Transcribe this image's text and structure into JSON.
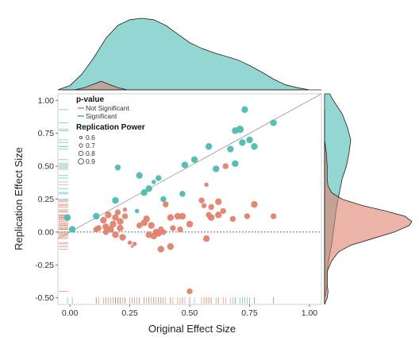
{
  "chart_data": {
    "type": "scatter",
    "title": "",
    "xlabel": "Original Effect Size",
    "ylabel": "Replication Effect Size",
    "xlim": [
      -0.05,
      1.05
    ],
    "ylim": [
      -0.55,
      1.05
    ],
    "xticks": [
      0.0,
      0.25,
      0.5,
      0.75,
      1.0
    ],
    "xtick_labels": [
      "0.00",
      "0.25",
      "0.50",
      "0.75",
      "1.00"
    ],
    "yticks": [
      -0.5,
      -0.25,
      0.0,
      0.25,
      0.5,
      0.75,
      1.0
    ],
    "ytick_labels": [
      "-0.50",
      "-0.25",
      "0.00",
      "0.25",
      "0.50",
      "0.75",
      "1.00"
    ],
    "reference_line": {
      "type": "identity",
      "slope": 1,
      "intercept": 0
    },
    "zero_line": {
      "y": 0,
      "style": "dotted"
    },
    "grid": false,
    "legend": {
      "placement": "top-left",
      "color_title": "p-value",
      "color_entries": [
        {
          "label": "Not Significant",
          "color": "#E0826E"
        },
        {
          "label": "Significant",
          "color": "#4DBBB3"
        }
      ],
      "size_title": "Replication Power",
      "size_entries": [
        {
          "label": "0.6",
          "power": 0.6
        },
        {
          "label": "0.7",
          "power": 0.7
        },
        {
          "label": "0.8",
          "power": 0.8
        },
        {
          "label": "0.9",
          "power": 0.9
        }
      ]
    },
    "colors": {
      "not_significant": "#E0826E",
      "significant": "#4DBBB3"
    },
    "series": [
      {
        "name": "Significant",
        "color": "#4DBBB3",
        "points": [
          {
            "x": -0.01,
            "y": 0.11,
            "power": 0.85
          },
          {
            "x": 0.01,
            "y": 0.02,
            "power": 0.85
          },
          {
            "x": 0.11,
            "y": 0.12,
            "power": 0.85
          },
          {
            "x": 0.19,
            "y": 0.24,
            "power": 0.85
          },
          {
            "x": 0.2,
            "y": 0.49,
            "power": 0.8
          },
          {
            "x": 0.29,
            "y": 0.43,
            "power": 0.85
          },
          {
            "x": 0.28,
            "y": 0.16,
            "power": 0.7
          },
          {
            "x": 0.31,
            "y": 0.3,
            "power": 0.85
          },
          {
            "x": 0.33,
            "y": 0.33,
            "power": 0.85
          },
          {
            "x": 0.37,
            "y": 0.41,
            "power": 0.8
          },
          {
            "x": 0.39,
            "y": 0.25,
            "power": 0.8
          },
          {
            "x": 0.35,
            "y": 0.38,
            "power": 0.7
          },
          {
            "x": 0.47,
            "y": 0.29,
            "power": 0.8
          },
          {
            "x": 0.48,
            "y": 0.51,
            "power": 0.85
          },
          {
            "x": 0.52,
            "y": 0.55,
            "power": 0.85
          },
          {
            "x": 0.58,
            "y": 0.65,
            "power": 0.85
          },
          {
            "x": 0.61,
            "y": 0.48,
            "power": 0.85
          },
          {
            "x": 0.67,
            "y": 0.63,
            "power": 0.85
          },
          {
            "x": 0.69,
            "y": 0.77,
            "power": 0.85
          },
          {
            "x": 0.71,
            "y": 0.78,
            "power": 0.9
          },
          {
            "x": 0.72,
            "y": 0.68,
            "power": 0.85
          },
          {
            "x": 0.73,
            "y": 0.93,
            "power": 0.85
          },
          {
            "x": 0.75,
            "y": 0.7,
            "power": 0.85
          },
          {
            "x": 0.77,
            "y": 0.65,
            "power": 0.85
          },
          {
            "x": 0.85,
            "y": 0.83,
            "power": 0.85
          },
          {
            "x": 0.69,
            "y": 0.52,
            "power": 0.85
          }
        ]
      },
      {
        "name": "Not Significant",
        "color": "#E0826E",
        "points": [
          {
            "x": 0.11,
            "y": 0.02,
            "power": 0.8
          },
          {
            "x": 0.12,
            "y": 0.03,
            "power": 0.8
          },
          {
            "x": 0.14,
            "y": 0.09,
            "power": 0.85
          },
          {
            "x": 0.15,
            "y": 0.04,
            "power": 0.85
          },
          {
            "x": 0.15,
            "y": 0.0,
            "power": 0.8
          },
          {
            "x": 0.16,
            "y": 0.13,
            "power": 0.85
          },
          {
            "x": 0.17,
            "y": 0.02,
            "power": 0.85
          },
          {
            "x": 0.18,
            "y": 0.06,
            "power": 0.85
          },
          {
            "x": 0.19,
            "y": 0.11,
            "power": 0.85
          },
          {
            "x": 0.19,
            "y": -0.02,
            "power": 0.85
          },
          {
            "x": 0.2,
            "y": 0.15,
            "power": 0.8
          },
          {
            "x": 0.21,
            "y": 0.08,
            "power": 0.85
          },
          {
            "x": 0.21,
            "y": 0.03,
            "power": 0.85
          },
          {
            "x": 0.22,
            "y": -0.04,
            "power": 0.85
          },
          {
            "x": 0.23,
            "y": 0.12,
            "power": 0.8
          },
          {
            "x": 0.23,
            "y": 0.17,
            "power": 0.7
          },
          {
            "x": 0.25,
            "y": -0.08,
            "power": 0.7
          },
          {
            "x": 0.26,
            "y": -0.11,
            "power": 0.6
          },
          {
            "x": 0.27,
            "y": -0.09,
            "power": 0.7
          },
          {
            "x": 0.29,
            "y": 0.05,
            "power": 0.8
          },
          {
            "x": 0.31,
            "y": 0.07,
            "power": 0.85
          },
          {
            "x": 0.32,
            "y": 0.1,
            "power": 0.85
          },
          {
            "x": 0.33,
            "y": -0.02,
            "power": 0.85
          },
          {
            "x": 0.34,
            "y": 0.05,
            "power": 0.85
          },
          {
            "x": 0.35,
            "y": -0.03,
            "power": 0.85
          },
          {
            "x": 0.36,
            "y": 0.0,
            "power": 0.85
          },
          {
            "x": 0.37,
            "y": -0.01,
            "power": 0.85
          },
          {
            "x": 0.38,
            "y": 0.02,
            "power": 0.8
          },
          {
            "x": 0.38,
            "y": -0.13,
            "power": 0.85
          },
          {
            "x": 0.39,
            "y": 0.0,
            "power": 0.8
          },
          {
            "x": 0.4,
            "y": 0.21,
            "power": 0.8
          },
          {
            "x": 0.42,
            "y": 0.11,
            "power": 0.85
          },
          {
            "x": 0.42,
            "y": -0.11,
            "power": 0.85
          },
          {
            "x": 0.43,
            "y": 0.03,
            "power": 0.8
          },
          {
            "x": 0.45,
            "y": 0.12,
            "power": 0.85
          },
          {
            "x": 0.46,
            "y": 0.02,
            "power": 0.8
          },
          {
            "x": 0.47,
            "y": 0.12,
            "power": 0.85
          },
          {
            "x": 0.5,
            "y": 0.06,
            "power": 0.85
          },
          {
            "x": 0.5,
            "y": -0.45,
            "power": 0.8
          },
          {
            "x": 0.55,
            "y": 0.24,
            "power": 0.8
          },
          {
            "x": 0.56,
            "y": 0.2,
            "power": 0.75
          },
          {
            "x": 0.57,
            "y": -0.05,
            "power": 0.85
          },
          {
            "x": 0.57,
            "y": 0.36,
            "power": 0.7
          },
          {
            "x": 0.58,
            "y": 0.13,
            "power": 0.8
          },
          {
            "x": 0.59,
            "y": 0.11,
            "power": 0.85
          },
          {
            "x": 0.59,
            "y": 0.19,
            "power": 0.8
          },
          {
            "x": 0.62,
            "y": 0.13,
            "power": 0.85
          },
          {
            "x": 0.62,
            "y": 0.23,
            "power": 0.85
          },
          {
            "x": 0.64,
            "y": 0.16,
            "power": 0.8
          },
          {
            "x": 0.65,
            "y": 0.5,
            "power": 0.8
          },
          {
            "x": 0.68,
            "y": 0.1,
            "power": 0.8
          },
          {
            "x": 0.74,
            "y": 0.12,
            "power": 0.8
          },
          {
            "x": 0.77,
            "y": 0.21,
            "power": 0.85
          },
          {
            "x": 0.85,
            "y": 0.12,
            "power": 0.8
          }
        ]
      }
    ],
    "marginal_density": {
      "x": {
        "Significant": [
          [
            -0.05,
            0.0
          ],
          [
            0.0,
            0.06
          ],
          [
            0.05,
            0.22
          ],
          [
            0.1,
            0.45
          ],
          [
            0.15,
            0.72
          ],
          [
            0.2,
            0.9
          ],
          [
            0.25,
            0.98
          ],
          [
            0.3,
            1.0
          ],
          [
            0.35,
            0.98
          ],
          [
            0.4,
            0.9
          ],
          [
            0.45,
            0.78
          ],
          [
            0.5,
            0.66
          ],
          [
            0.55,
            0.58
          ],
          [
            0.6,
            0.52
          ],
          [
            0.65,
            0.47
          ],
          [
            0.7,
            0.42
          ],
          [
            0.75,
            0.34
          ],
          [
            0.8,
            0.25
          ],
          [
            0.85,
            0.15
          ],
          [
            0.9,
            0.07
          ],
          [
            0.95,
            0.03
          ],
          [
            1.0,
            0.0
          ]
        ],
        "Not Significant": [
          [
            0.02,
            0.0
          ],
          [
            0.06,
            0.03
          ],
          [
            0.1,
            0.08
          ],
          [
            0.13,
            0.12
          ],
          [
            0.16,
            0.08
          ],
          [
            0.2,
            0.03
          ],
          [
            0.24,
            0.0
          ]
        ]
      },
      "y": {
        "Significant": [
          [
            -0.5,
            0.0
          ],
          [
            -0.45,
            0.02
          ],
          [
            -0.4,
            0.03
          ],
          [
            -0.3,
            0.03
          ],
          [
            -0.2,
            0.05
          ],
          [
            -0.1,
            0.08
          ],
          [
            0.0,
            0.1
          ],
          [
            0.1,
            0.12
          ],
          [
            0.2,
            0.14
          ],
          [
            0.3,
            0.17
          ],
          [
            0.4,
            0.2
          ],
          [
            0.5,
            0.25
          ],
          [
            0.6,
            0.28
          ],
          [
            0.7,
            0.3
          ],
          [
            0.8,
            0.26
          ],
          [
            0.9,
            0.2
          ],
          [
            1.0,
            0.1
          ],
          [
            1.05,
            0.06
          ]
        ],
        "Not Significant": [
          [
            -0.55,
            0.0
          ],
          [
            -0.5,
            0.03
          ],
          [
            -0.45,
            0.04
          ],
          [
            -0.4,
            0.03
          ],
          [
            -0.3,
            0.03
          ],
          [
            -0.22,
            0.08
          ],
          [
            -0.15,
            0.16
          ],
          [
            -0.1,
            0.3
          ],
          [
            -0.05,
            0.55
          ],
          [
            0.0,
            0.8
          ],
          [
            0.05,
            0.97
          ],
          [
            0.08,
            1.0
          ],
          [
            0.12,
            0.92
          ],
          [
            0.16,
            0.7
          ],
          [
            0.2,
            0.44
          ],
          [
            0.25,
            0.2
          ],
          [
            0.3,
            0.08
          ],
          [
            0.35,
            0.04
          ],
          [
            0.4,
            0.03
          ],
          [
            0.5,
            0.03
          ],
          [
            0.6,
            0.02
          ],
          [
            0.7,
            0.0
          ]
        ]
      }
    }
  }
}
